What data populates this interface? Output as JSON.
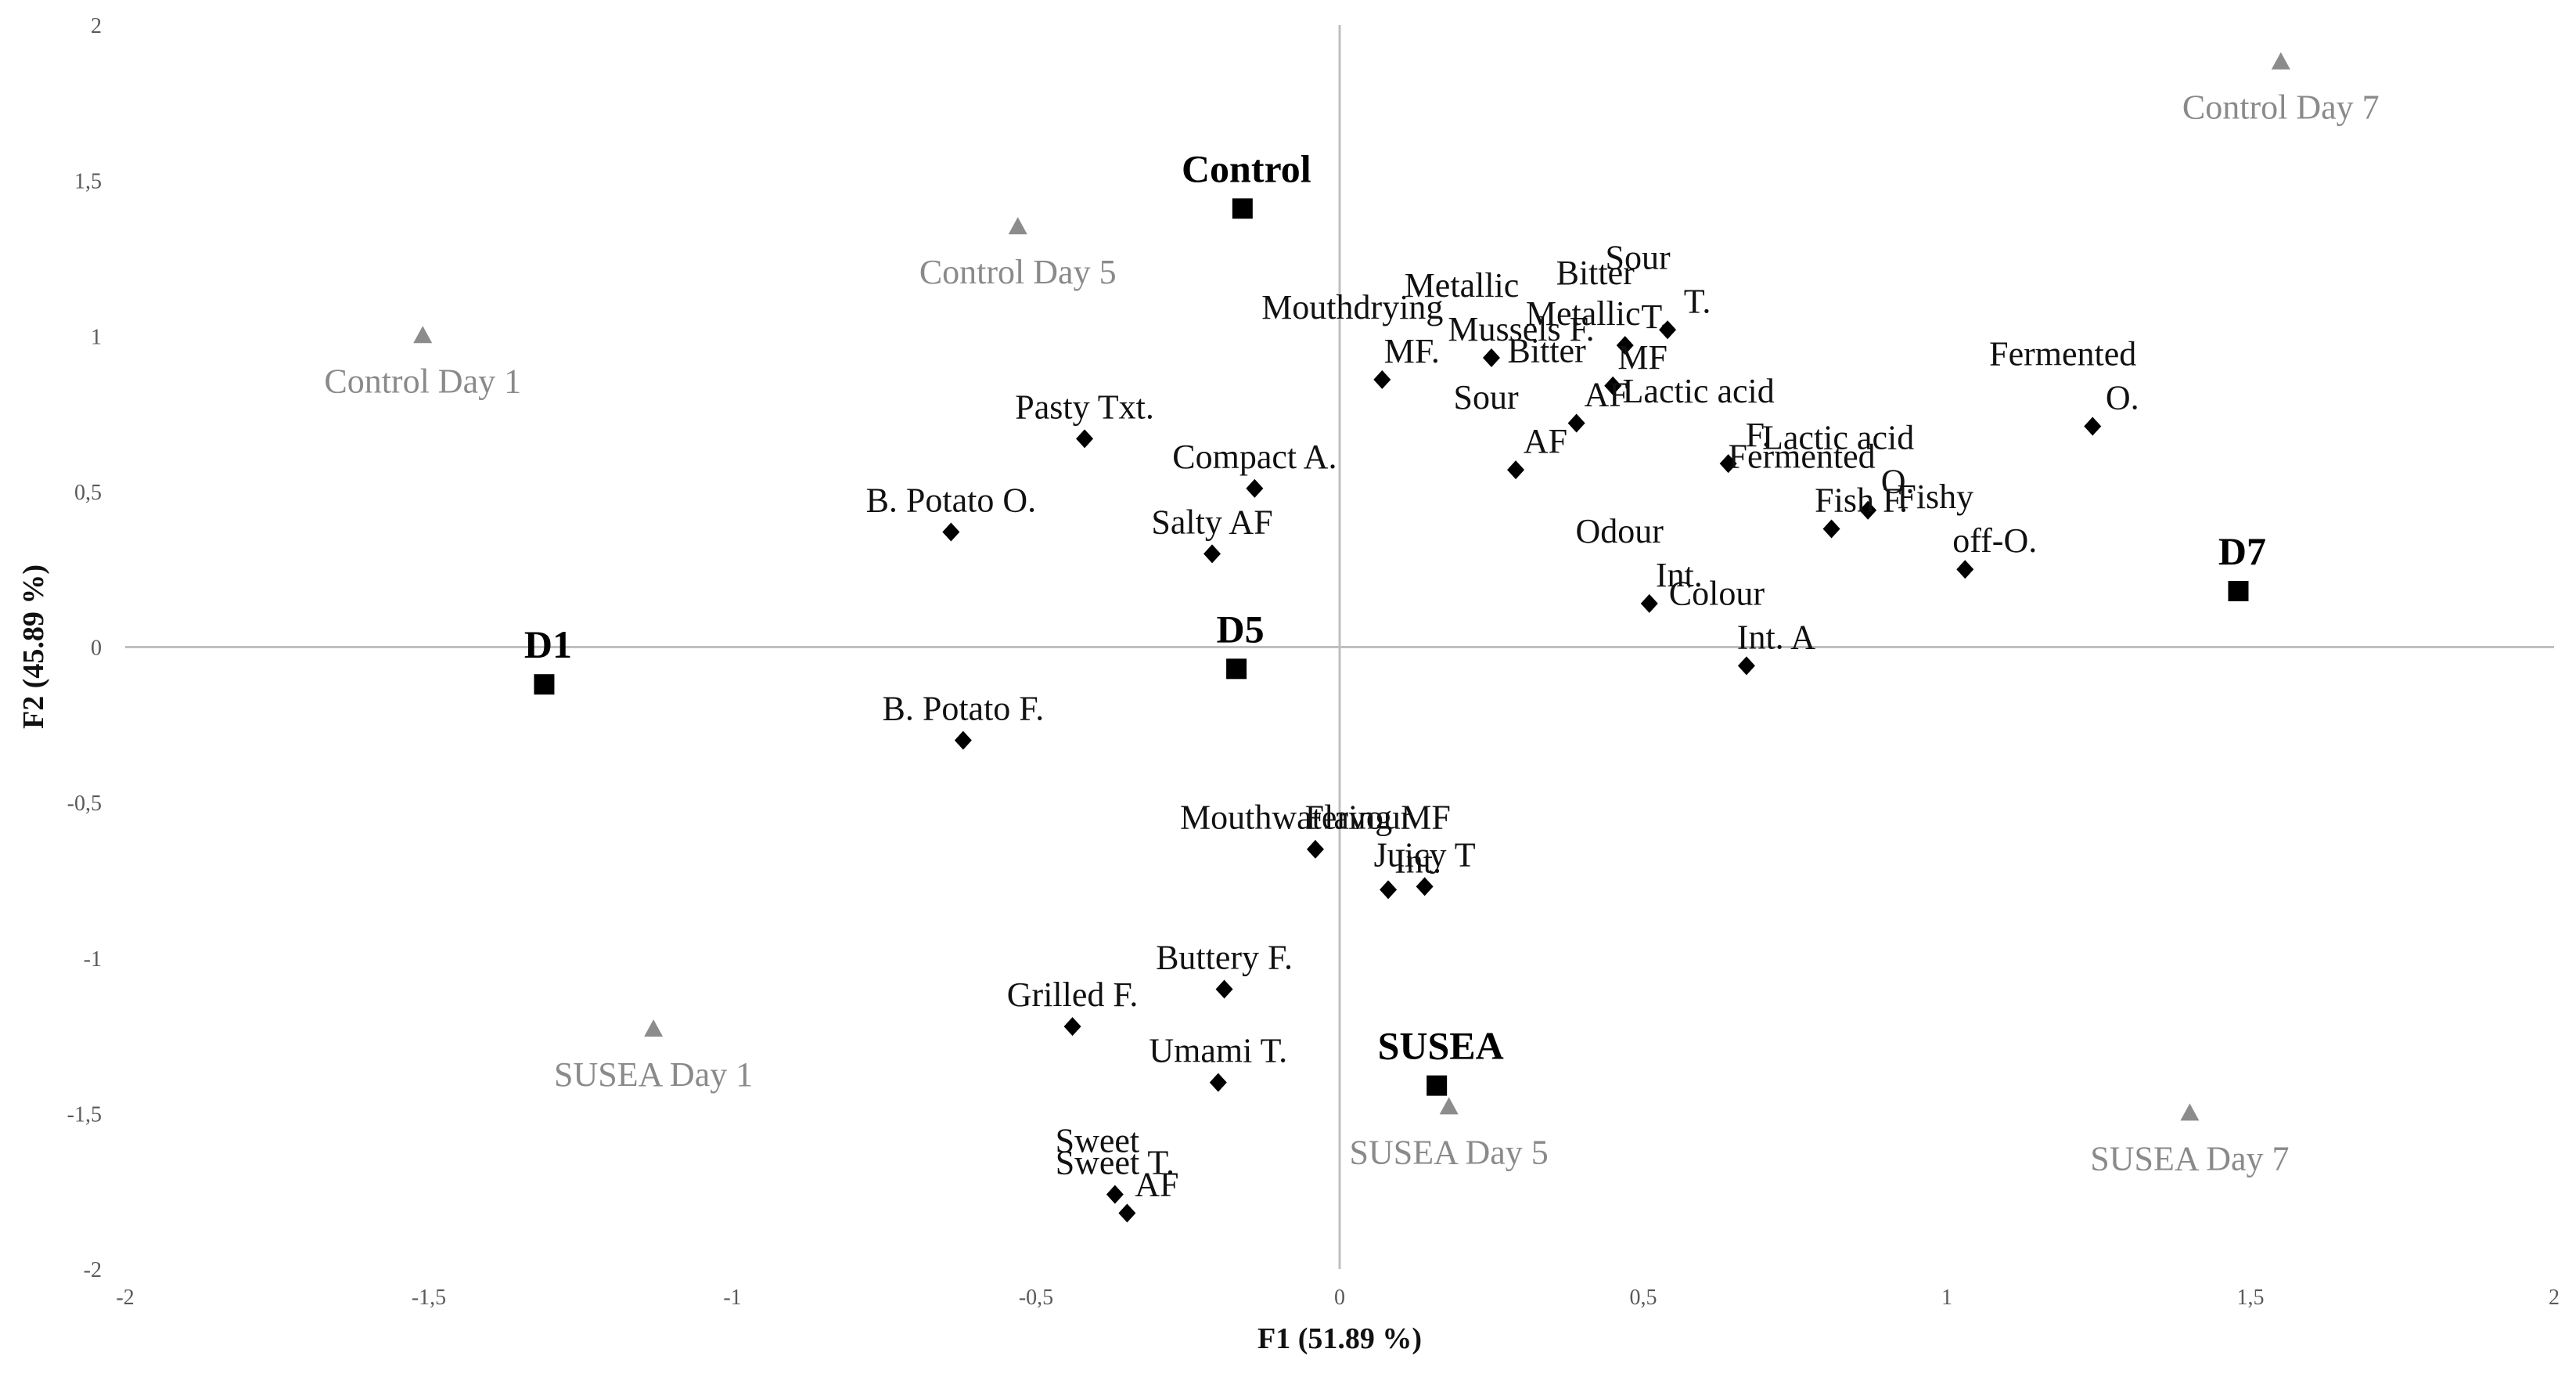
{
  "chart_data": {
    "type": "scatter",
    "title": "",
    "xlabel": "F1 (51.89 %)",
    "ylabel": "F2 (45.89 %)",
    "xlim": [
      -2,
      2
    ],
    "ylim": [
      -2,
      2
    ],
    "xticks": [
      "-2",
      "-1,5",
      "-1",
      "-0,5",
      "0",
      "0,5",
      "1",
      "1,5",
      "2"
    ],
    "yticks": [
      "2",
      "1,5",
      "1",
      "0,5",
      "0",
      "-0,5",
      "-1",
      "-1,5",
      "-2"
    ],
    "grid": false,
    "colors": {
      "attribute": "#000000",
      "product": "#000000",
      "observation": "#8c8c8c",
      "axis": "#bfbfbf"
    },
    "attributes": [
      {
        "label": [
          "Mouthdrying",
          "MF."
        ],
        "x": 0.07,
        "y": 0.86
      },
      {
        "label": [
          "Metallic",
          "Mussels F."
        ],
        "x": 0.25,
        "y": 0.93
      },
      {
        "label": [
          "Bitter",
          "T."
        ],
        "x": 0.47,
        "y": 0.97
      },
      {
        "label": [
          "Sour",
          "T."
        ],
        "x": 0.54,
        "y": 1.02
      },
      {
        "label": [
          "Metallic",
          "MF"
        ],
        "x": 0.45,
        "y": 0.84
      },
      {
        "label": [
          "Bitter",
          "AF"
        ],
        "x": 0.39,
        "y": 0.72
      },
      {
        "label": [
          "Sour",
          "AF"
        ],
        "x": 0.29,
        "y": 0.57
      },
      {
        "label": [
          "Lactic acid",
          "F."
        ],
        "x": 0.64,
        "y": 0.59
      },
      {
        "label": [
          "Lactic acid",
          "O."
        ],
        "x": 0.87,
        "y": 0.44
      },
      {
        "label": [
          "Fermented",
          "Fish F."
        ],
        "x": 0.81,
        "y": 0.38
      },
      {
        "label": [
          "Fermented",
          "O."
        ],
        "x": 1.24,
        "y": 0.71
      },
      {
        "label": [
          "Fishy",
          "off-O."
        ],
        "x": 1.03,
        "y": 0.25
      },
      {
        "label": [
          "Odour",
          "Int."
        ],
        "x": 0.51,
        "y": 0.14
      },
      {
        "label": [
          "Colour",
          "Int. A"
        ],
        "x": 0.67,
        "y": -0.06
      },
      {
        "label": [
          "Pasty Txt."
        ],
        "x": -0.42,
        "y": 0.67
      },
      {
        "label": [
          "Compact A."
        ],
        "x": -0.14,
        "y": 0.51
      },
      {
        "label": [
          "Salty AF"
        ],
        "x": -0.21,
        "y": 0.3
      },
      {
        "label": [
          "B. Potato O."
        ],
        "x": -0.64,
        "y": 0.37
      },
      {
        "label": [
          "B. Potato F."
        ],
        "x": -0.62,
        "y": -0.3
      },
      {
        "label": [
          "Mouthwatering MF"
        ],
        "x": -0.04,
        "y": -0.65
      },
      {
        "label": [
          "Flavour",
          "Int."
        ],
        "x": 0.08,
        "y": -0.78
      },
      {
        "label": [
          "Juicy T"
        ],
        "x": 0.14,
        "y": -0.77
      },
      {
        "label": [
          "Buttery F."
        ],
        "x": -0.19,
        "y": -1.1
      },
      {
        "label": [
          "Grilled F."
        ],
        "x": -0.44,
        "y": -1.22
      },
      {
        "label": [
          "Umami T."
        ],
        "x": -0.2,
        "y": -1.4
      },
      {
        "label": [
          "Sweet T."
        ],
        "x": -0.37,
        "y": -1.76
      },
      {
        "label": [
          "Sweet",
          "AF"
        ],
        "x": -0.35,
        "y": -1.82
      }
    ],
    "products": [
      {
        "label": "Control",
        "x": -0.16,
        "y": 1.41
      },
      {
        "label": "D1",
        "x": -1.31,
        "y": -0.12
      },
      {
        "label": "D5",
        "x": -0.17,
        "y": -0.07
      },
      {
        "label": "D7",
        "x": 1.48,
        "y": 0.18
      },
      {
        "label": "SUSEA",
        "x": 0.16,
        "y": -1.41
      }
    ],
    "observations": [
      {
        "label": "Control Day 7",
        "x": 1.55,
        "y": 1.88
      },
      {
        "label": "Control Day 5",
        "x": -0.53,
        "y": 1.35
      },
      {
        "label": "Control Day 1",
        "x": -1.51,
        "y": 1.0
      },
      {
        "label": "SUSEA Day 1",
        "x": -1.13,
        "y": -1.23
      },
      {
        "label": "SUSEA Day 5",
        "x": 0.18,
        "y": -1.48
      },
      {
        "label": "SUSEA Day 7",
        "x": 1.4,
        "y": -1.5
      }
    ]
  }
}
